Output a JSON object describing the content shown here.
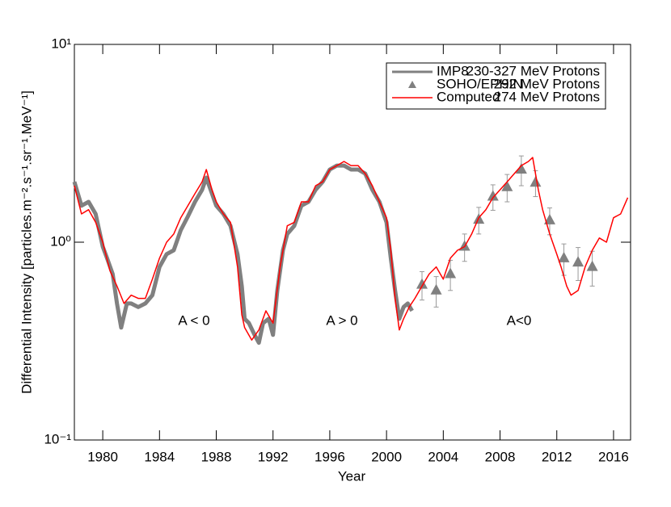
{
  "chart_data": {
    "type": "line",
    "xlabel": "Year",
    "ylabel": "Differential Intensity [particles.m⁻².s⁻¹.sr⁻¹.MeV⁻¹]",
    "xlim": [
      1978,
      2017.2
    ],
    "ylim": [
      0.1,
      10
    ],
    "log_y": true,
    "xticks": [
      1980,
      1984,
      1988,
      1992,
      1996,
      2000,
      2004,
      2008,
      2012,
      2016
    ],
    "yticks": [
      {
        "value": 0.1,
        "label": "10⁻¹"
      },
      {
        "value": 1,
        "label": "10⁰"
      },
      {
        "value": 10,
        "label": "10¹"
      }
    ],
    "legend": "upper right",
    "annotations": [
      "A < 0",
      "A > 0",
      "A<0"
    ],
    "series": [
      {
        "name": "IMP8",
        "energy": "230-327 MeV Protons",
        "type": "line",
        "color": "#808080",
        "x": [
          1978.0,
          1978.5,
          1979.0,
          1979.5,
          1980.0,
          1980.3,
          1980.7,
          1981.0,
          1981.3,
          1981.7,
          1982.0,
          1982.5,
          1983.0,
          1983.5,
          1984.0,
          1984.5,
          1985.0,
          1985.5,
          1986.0,
          1986.5,
          1987.0,
          1987.3,
          1987.7,
          1988.0,
          1988.5,
          1989.0,
          1989.5,
          1989.8,
          1990.0,
          1990.3,
          1990.7,
          1991.0,
          1991.3,
          1991.7,
          1992.0,
          1992.3,
          1992.7,
          1993.0,
          1993.5,
          1994.0,
          1994.5,
          1995.0,
          1995.5,
          1996.0,
          1996.5,
          1997.0,
          1997.5,
          1998.0,
          1998.5,
          1999.0,
          1999.5,
          2000.0,
          2000.3,
          2000.6,
          2000.9,
          2001.2,
          2001.5,
          2001.8
        ],
        "values": [
          2.02,
          1.53,
          1.6,
          1.39,
          0.95,
          0.83,
          0.69,
          0.49,
          0.37,
          0.49,
          0.49,
          0.47,
          0.49,
          0.54,
          0.75,
          0.87,
          0.91,
          1.15,
          1.35,
          1.6,
          1.84,
          2.12,
          1.76,
          1.53,
          1.39,
          1.21,
          0.87,
          0.6,
          0.41,
          0.39,
          0.34,
          0.31,
          0.39,
          0.41,
          0.34,
          0.57,
          0.91,
          1.1,
          1.21,
          1.53,
          1.6,
          1.84,
          2.02,
          2.33,
          2.44,
          2.44,
          2.33,
          2.33,
          2.22,
          1.84,
          1.6,
          1.26,
          0.83,
          0.57,
          0.41,
          0.47,
          0.49,
          0.45
        ]
      },
      {
        "name": "SOHO/EPHIN",
        "energy": "292 MeV Protons",
        "type": "scatter",
        "color": "#808080",
        "x": [
          2002.5,
          2003.5,
          2004.5,
          2005.5,
          2006.5,
          2007.5,
          2008.5,
          2009.5,
          2010.5,
          2011.5,
          2012.5,
          2013.5,
          2014.5
        ],
        "values": [
          0.61,
          0.57,
          0.69,
          0.95,
          1.3,
          1.7,
          1.9,
          2.33,
          2.0,
          1.29,
          0.83,
          0.79,
          0.75
        ],
        "errors": [
          0.1,
          0.1,
          0.12,
          0.15,
          0.2,
          0.25,
          0.3,
          0.4,
          0.3,
          0.2,
          0.15,
          0.15,
          0.15
        ]
      },
      {
        "name": "Computed",
        "energy": "274 MeV Protons",
        "type": "line",
        "color": "#ff0000",
        "x": [
          1978.0,
          1978.5,
          1979.0,
          1979.5,
          1980.0,
          1980.5,
          1981.0,
          1981.5,
          1982.0,
          1982.5,
          1983.0,
          1983.5,
          1984.0,
          1984.5,
          1985.0,
          1985.5,
          1986.0,
          1986.5,
          1987.0,
          1987.3,
          1987.7,
          1988.0,
          1988.5,
          1989.0,
          1989.5,
          1989.8,
          1990.0,
          1990.5,
          1991.0,
          1991.5,
          1992.0,
          1992.5,
          1993.0,
          1993.5,
          1994.0,
          1994.5,
          1995.0,
          1995.5,
          1996.0,
          1996.5,
          1997.0,
          1997.5,
          1998.0,
          1998.5,
          1999.0,
          1999.5,
          2000.0,
          2000.3,
          2000.6,
          2000.9,
          2001.2,
          2001.6,
          2002.0,
          2002.5,
          2003.0,
          2003.5,
          2004.0,
          2004.5,
          2005.0,
          2005.5,
          2006.0,
          2006.5,
          2007.0,
          2007.5,
          2008.0,
          2008.5,
          2009.0,
          2009.5,
          2010.0,
          2010.3,
          2010.7,
          2011.0,
          2011.5,
          2012.0,
          2012.3,
          2012.7,
          2013.0,
          2013.5,
          2014.0,
          2014.5,
          2015.0,
          2015.5,
          2016.0,
          2016.5,
          2017.0
        ],
        "values": [
          1.93,
          1.39,
          1.46,
          1.26,
          1.0,
          0.72,
          0.6,
          0.49,
          0.54,
          0.52,
          0.52,
          0.65,
          0.83,
          1.0,
          1.1,
          1.33,
          1.53,
          1.76,
          2.02,
          2.33,
          1.84,
          1.6,
          1.39,
          1.26,
          0.75,
          0.43,
          0.37,
          0.32,
          0.36,
          0.45,
          0.39,
          0.75,
          1.21,
          1.26,
          1.6,
          1.6,
          1.93,
          2.02,
          2.33,
          2.44,
          2.56,
          2.44,
          2.44,
          2.22,
          1.93,
          1.6,
          1.33,
          0.91,
          0.52,
          0.36,
          0.41,
          0.47,
          0.52,
          0.6,
          0.69,
          0.75,
          0.65,
          0.83,
          0.91,
          0.95,
          1.1,
          1.33,
          1.46,
          1.68,
          1.84,
          2.02,
          2.22,
          2.44,
          2.56,
          2.68,
          1.84,
          1.46,
          1.1,
          0.87,
          0.75,
          0.6,
          0.54,
          0.57,
          0.75,
          0.91,
          1.05,
          1.0,
          1.33,
          1.39,
          1.68
        ]
      }
    ]
  }
}
